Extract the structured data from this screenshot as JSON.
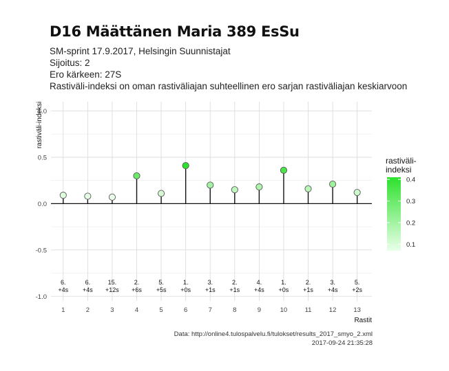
{
  "title": "D16 Määttänen Maria 389 EsSu",
  "subtitle_lines": [
    "SM-sprint 17.9.2017, Helsingin Suunnistajat",
    "Sijoitus: 2",
    "Ero kärkeen: 27S",
    "Rastiväli-indeksi on oman rastiväliajan suhteellinen ero sarjan rastiväliajan keskiarvoon"
  ],
  "caption": {
    "source": "Data: http://online4.tulospalvelu.fi/tulokset/results_2017_smyo_2.xml",
    "timestamp": "2017-09-24 21:35:28"
  },
  "chart_data": {
    "type": "scatter",
    "style": "lollipop",
    "xlabel": "Rastit",
    "ylabel": "rastiväli-indeksi",
    "ylim": [
      -1.05,
      1.1
    ],
    "xlim": [
      0.5,
      13.6
    ],
    "yticks": [
      "1.0",
      "0.5",
      "0.0",
      "-0.5",
      "-1.0"
    ],
    "ytick_values": [
      1.0,
      0.5,
      0.0,
      -0.5,
      -1.0
    ],
    "x": [
      1,
      2,
      3,
      4,
      5,
      6,
      7,
      8,
      9,
      10,
      11,
      12,
      13
    ],
    "values": [
      0.09,
      0.08,
      0.07,
      0.3,
      0.11,
      0.41,
      0.2,
      0.15,
      0.18,
      0.36,
      0.16,
      0.21,
      0.12
    ],
    "ranks": [
      "6.",
      "6.",
      "15.",
      "2.",
      "5.",
      "1.",
      "3.",
      "2.",
      "4.",
      "1.",
      "2.",
      "3.",
      "5."
    ],
    "diffs": [
      "+4s",
      "+4s",
      "+12s",
      "+6s",
      "+5s",
      "+0s",
      "+1s",
      "+1s",
      "+4s",
      "+0s",
      "+1s",
      "+4s",
      "+2s"
    ],
    "grid": true,
    "legend": {
      "title_lines": [
        "rastiväli-",
        "indeksi"
      ],
      "placement": "right",
      "ticks": [
        "0.4",
        "0.3",
        "0.2",
        "0.1"
      ],
      "tick_values": [
        0.4,
        0.3,
        0.2,
        0.1
      ],
      "range": [
        0.07,
        0.41
      ],
      "low_color": "#eaffea",
      "high_color": "#2de12d"
    }
  }
}
